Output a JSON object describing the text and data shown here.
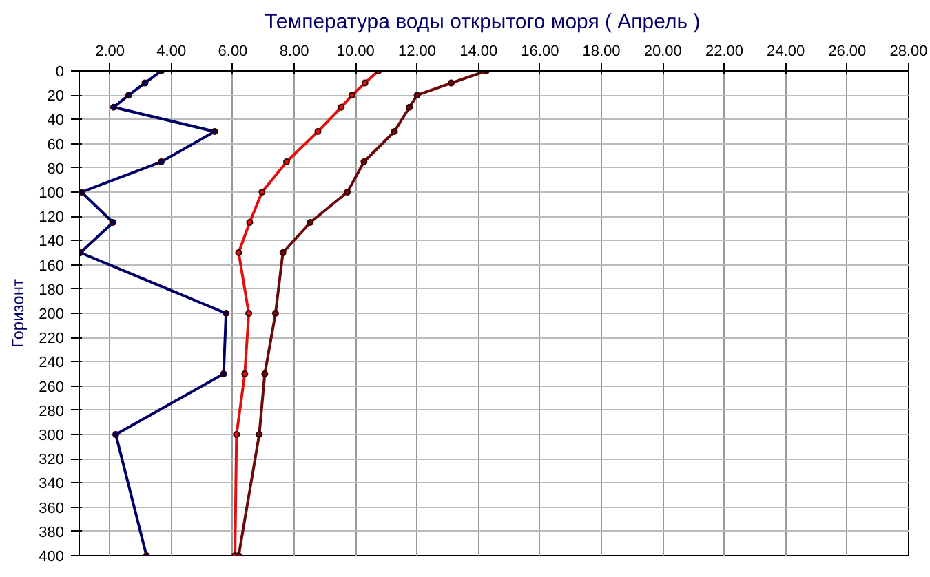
{
  "chart_data": {
    "type": "line",
    "title": "Температура воды открытого моря     ( Апрель )",
    "ylabel": "Горизонт",
    "series": [
      {
        "color": "#000066",
        "x": [
          3.67,
          3.14,
          2.61,
          2.12,
          5.41,
          3.67,
          1.07,
          2.1,
          1.04,
          5.78,
          5.7,
          2.19,
          3.19
        ],
        "values": [
          0,
          10,
          20,
          30,
          50,
          75,
          100,
          125,
          150,
          200,
          250,
          300,
          400
        ]
      },
      {
        "color": "#e01010",
        "x": [
          10.74,
          10.3,
          9.88,
          9.53,
          8.77,
          7.75,
          6.95,
          6.55,
          6.19,
          6.52,
          6.39,
          6.12,
          6.07
        ],
        "values": [
          0,
          10,
          20,
          30,
          50,
          75,
          100,
          125,
          150,
          200,
          250,
          300,
          400
        ]
      },
      {
        "color": "#6a0a0a",
        "x": [
          14.25,
          13.11,
          12.0,
          11.75,
          11.26,
          10.27,
          9.73,
          8.52,
          7.63,
          7.39,
          7.04,
          6.86,
          6.19
        ],
        "values": [
          0,
          10,
          20,
          30,
          50,
          75,
          100,
          125,
          150,
          200,
          250,
          300,
          400
        ]
      }
    ],
    "xlim": [
      1,
      28
    ],
    "xticks": [
      {
        "value": 2,
        "label": "2.00"
      },
      {
        "value": 4,
        "label": "4.00"
      },
      {
        "value": 6,
        "label": "6.00"
      },
      {
        "value": 8,
        "label": "8.00"
      },
      {
        "value": 10,
        "label": "10.00"
      },
      {
        "value": 12,
        "label": "12.00"
      },
      {
        "value": 14,
        "label": "14.00"
      },
      {
        "value": 16,
        "label": "16.00"
      },
      {
        "value": 18,
        "label": "18.00"
      },
      {
        "value": 20,
        "label": "20.00"
      },
      {
        "value": 22,
        "label": "22.00"
      },
      {
        "value": 24,
        "label": "24.00"
      },
      {
        "value": 26,
        "label": "26.00"
      },
      {
        "value": 28,
        "label": "28.00"
      }
    ],
    "ylim": [
      400,
      0
    ],
    "yticks": [
      0,
      20,
      40,
      60,
      80,
      100,
      120,
      140,
      160,
      180,
      200,
      220,
      240,
      260,
      280,
      300,
      320,
      340,
      360,
      380,
      400
    ],
    "grid": true,
    "marker": "circle",
    "line_style": "solid"
  }
}
